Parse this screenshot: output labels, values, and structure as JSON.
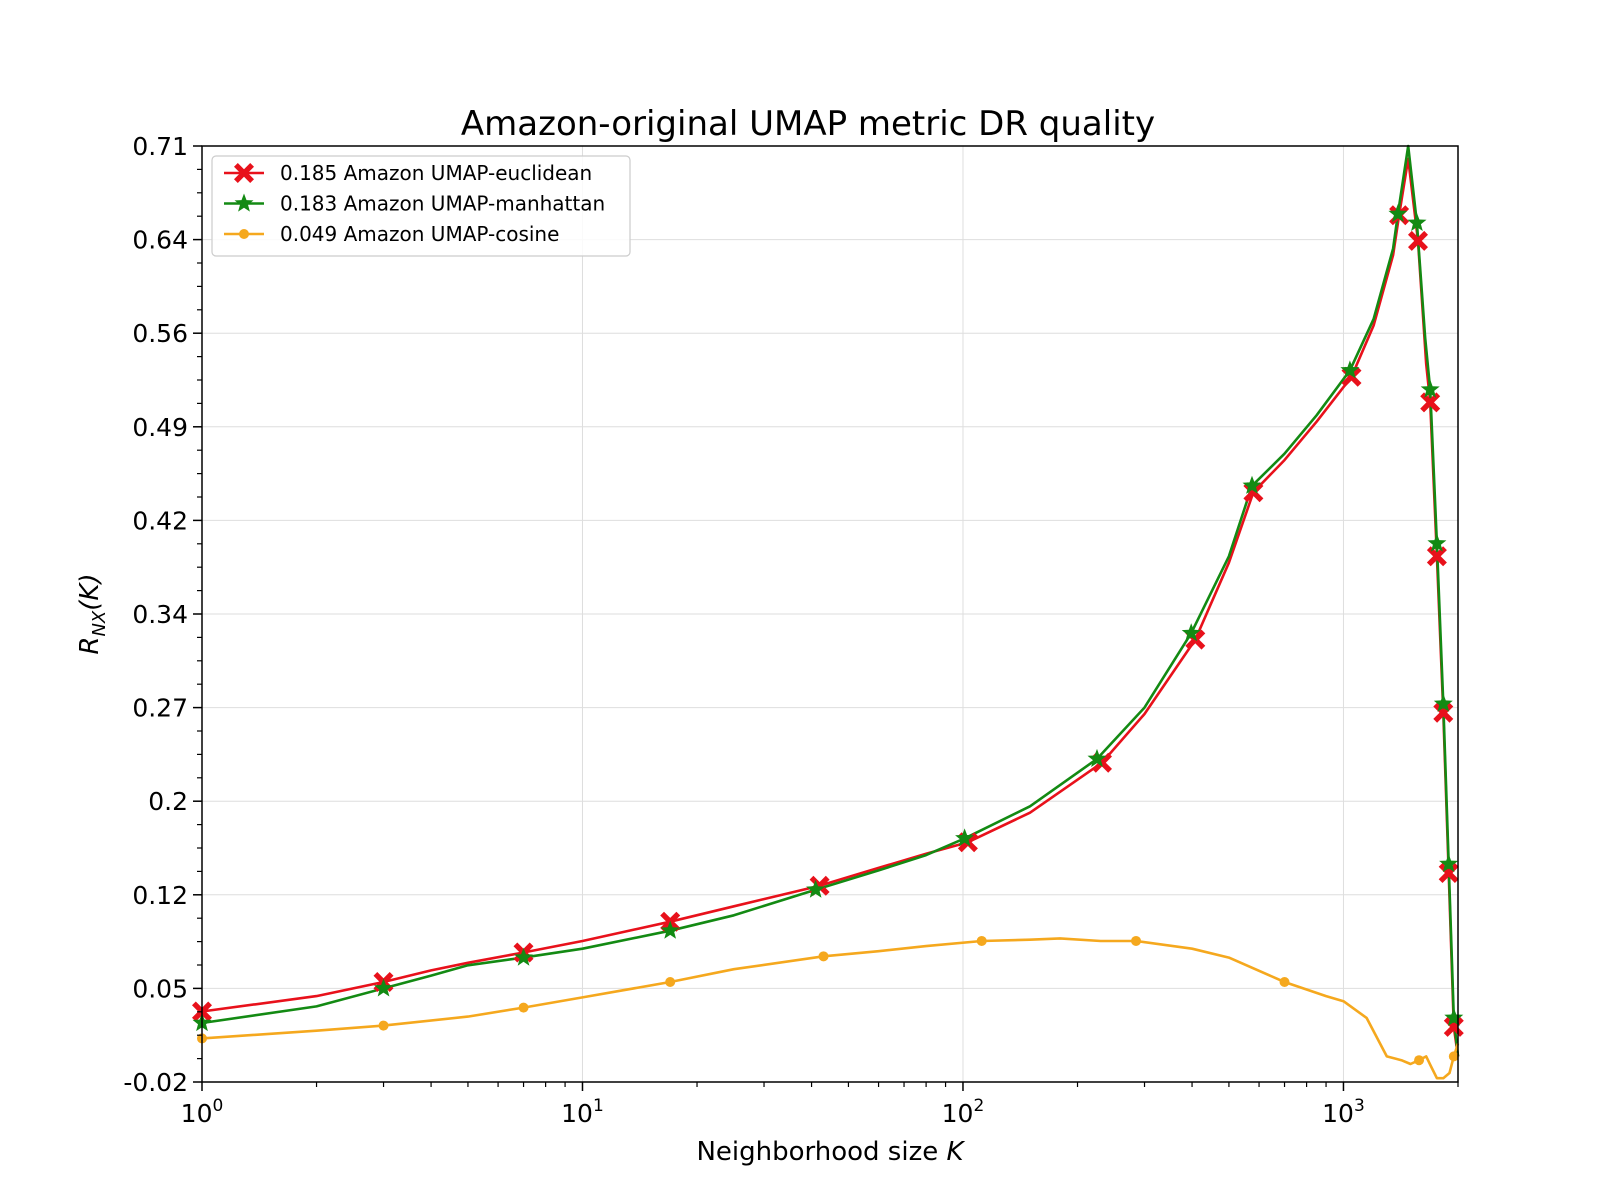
{
  "chart_data": {
    "type": "line",
    "title": "Amazon-original UMAP metric DR quality",
    "xlabel_text": "Neighborhood size ",
    "xlabel_italic": "K",
    "ylabel_base": "R",
    "ylabel_sub": "NX",
    "ylabel_arg": "(K)",
    "xscale": "log",
    "xlim": [
      1,
      2000
    ],
    "ylim": [
      -0.02,
      0.71
    ],
    "x_ticks": [
      {
        "base": "10",
        "exp": "0",
        "value": 1
      },
      {
        "base": "10",
        "exp": "1",
        "value": 10
      },
      {
        "base": "10",
        "exp": "2",
        "value": 100
      },
      {
        "base": "10",
        "exp": "3",
        "value": 1000
      }
    ],
    "y_ticks": [
      {
        "label": "-0.02",
        "value": -0.02
      },
      {
        "label": "0.05",
        "value": 0.053
      },
      {
        "label": "0.12",
        "value": 0.126
      },
      {
        "label": "0.2",
        "value": 0.199
      },
      {
        "label": "0.27",
        "value": 0.272
      },
      {
        "label": "0.34",
        "value": 0.345
      },
      {
        "label": "0.42",
        "value": 0.418
      },
      {
        "label": "0.49",
        "value": 0.491
      },
      {
        "label": "0.56",
        "value": 0.564
      },
      {
        "label": "0.64",
        "value": 0.637
      },
      {
        "label": "0.71",
        "value": 0.71
      }
    ],
    "grid": true,
    "legend_position": "top-left",
    "series": [
      {
        "name": "0.185 Amazon UMAP-euclidean",
        "color": "#e8111b",
        "marker": "x-filled",
        "x": [
          1,
          2,
          3,
          4,
          5,
          7,
          10,
          17,
          25,
          42,
          60,
          80,
          103,
          150,
          232,
          300,
          408,
          500,
          580,
          700,
          850,
          1050,
          1200,
          1350,
          1400,
          1480,
          1570,
          1650,
          1690,
          1760,
          1830,
          1890,
          1950,
          2000
        ],
        "y": [
          0.035,
          0.047,
          0.058,
          0.067,
          0.073,
          0.081,
          0.09,
          0.105,
          0.117,
          0.133,
          0.147,
          0.158,
          0.167,
          0.19,
          0.229,
          0.267,
          0.325,
          0.385,
          0.44,
          0.465,
          0.495,
          0.53,
          0.57,
          0.625,
          0.656,
          0.7,
          0.636,
          0.54,
          0.51,
          0.39,
          0.268,
          0.143,
          0.023,
          0.0
        ],
        "marker_x": [
          1,
          3,
          7,
          17,
          42,
          103,
          232,
          408,
          580,
          1050,
          1400,
          1570,
          1690,
          1760,
          1830,
          1890,
          1950
        ],
        "marker_y": [
          0.035,
          0.058,
          0.081,
          0.105,
          0.133,
          0.167,
          0.229,
          0.325,
          0.44,
          0.53,
          0.656,
          0.636,
          0.51,
          0.39,
          0.268,
          0.143,
          0.023
        ]
      },
      {
        "name": "0.183 Amazon UMAP-manhattan",
        "color": "#138a13",
        "marker": "star",
        "x": [
          1,
          2,
          3,
          4,
          5,
          7,
          10,
          17,
          25,
          41,
          60,
          80,
          101,
          150,
          225,
          300,
          398,
          500,
          575,
          700,
          850,
          1040,
          1200,
          1350,
          1390,
          1480,
          1560,
          1640,
          1690,
          1760,
          1830,
          1890,
          1950,
          2000
        ],
        "y": [
          0.026,
          0.039,
          0.053,
          0.063,
          0.071,
          0.077,
          0.084,
          0.098,
          0.11,
          0.13,
          0.145,
          0.157,
          0.17,
          0.195,
          0.232,
          0.272,
          0.33,
          0.39,
          0.445,
          0.47,
          0.5,
          0.535,
          0.575,
          0.63,
          0.657,
          0.71,
          0.65,
          0.56,
          0.52,
          0.4,
          0.275,
          0.15,
          0.03,
          0.0
        ],
        "marker_x": [
          1,
          3,
          7,
          17,
          41,
          101,
          225,
          398,
          575,
          1040,
          1390,
          1560,
          1690,
          1760,
          1830,
          1890,
          1950
        ],
        "marker_y": [
          0.026,
          0.053,
          0.077,
          0.098,
          0.13,
          0.17,
          0.232,
          0.33,
          0.445,
          0.535,
          0.657,
          0.65,
          0.52,
          0.4,
          0.275,
          0.15,
          0.03
        ]
      },
      {
        "name": "0.049 Amazon UMAP-cosine",
        "color": "#f5a81e",
        "marker": "circle",
        "x": [
          1,
          2,
          3,
          5,
          7,
          10,
          17,
          25,
          43,
          60,
          80,
          112,
          150,
          180,
          230,
          285,
          400,
          500,
          700,
          900,
          1000,
          1150,
          1300,
          1420,
          1500,
          1580,
          1650,
          1700,
          1760,
          1830,
          1900,
          1950,
          2000
        ],
        "y": [
          0.014,
          0.02,
          0.024,
          0.031,
          0.038,
          0.046,
          0.058,
          0.068,
          0.078,
          0.082,
          0.086,
          0.09,
          0.091,
          0.092,
          0.09,
          0.09,
          0.084,
          0.077,
          0.058,
          0.047,
          0.043,
          0.03,
          0.0,
          -0.003,
          -0.006,
          -0.003,
          0.0,
          -0.008,
          -0.017,
          -0.017,
          -0.013,
          0.0,
          0.01
        ],
        "marker_x": [
          1,
          3,
          7,
          17,
          43,
          112,
          285,
          700,
          1580,
          1950
        ],
        "marker_y": [
          0.014,
          0.024,
          0.038,
          0.058,
          0.078,
          0.09,
          0.09,
          0.058,
          -0.003,
          0.0
        ]
      }
    ]
  }
}
